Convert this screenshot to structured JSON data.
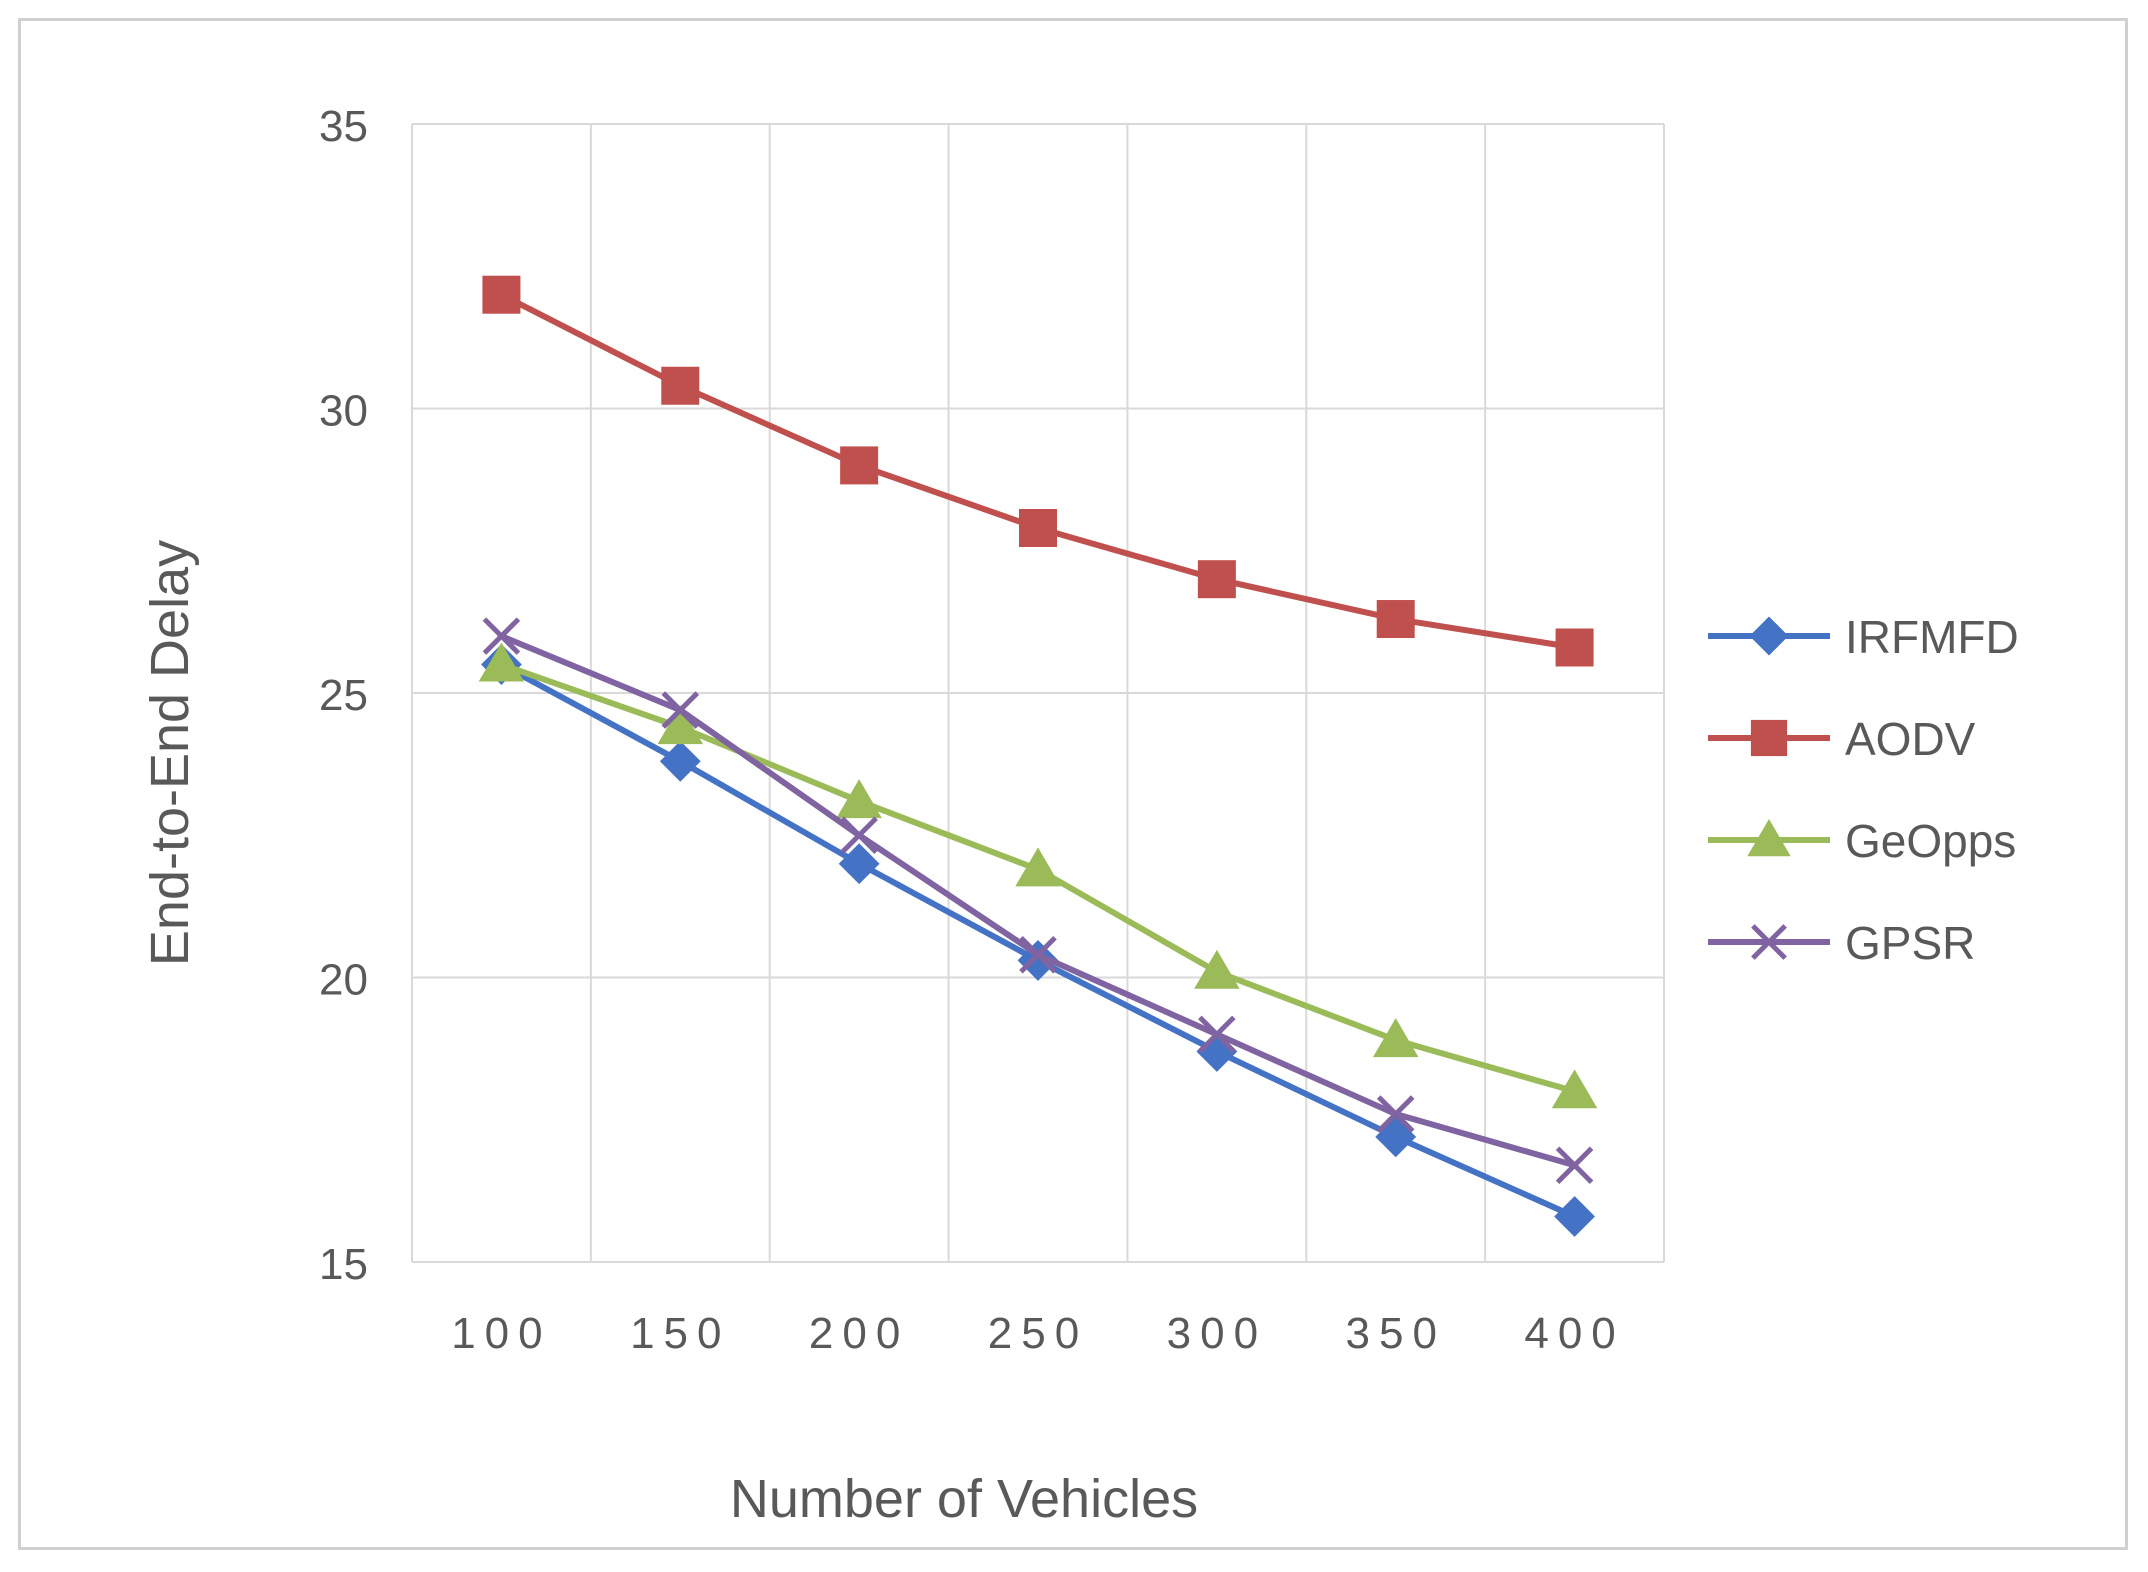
{
  "chart_data": {
    "type": "line",
    "title": "",
    "xlabel": "Number of Vehicles",
    "ylabel": "End-to-End Delay",
    "categories": [
      "100",
      "150",
      "200",
      "250",
      "300",
      "350",
      "400"
    ],
    "ylim": [
      15,
      35
    ],
    "yticks": [
      "15",
      "20",
      "25",
      "30",
      "35"
    ],
    "grid": true,
    "legend_position": "right",
    "series": [
      {
        "name": "IRFMFD",
        "color": "#4472C4",
        "marker": "diamond",
        "values": [
          25.5,
          23.8,
          22.0,
          20.3,
          18.7,
          17.2,
          15.8
        ]
      },
      {
        "name": "AODV",
        "color": "#C0504D",
        "marker": "square",
        "values": [
          32.0,
          30.4,
          29.0,
          27.9,
          27.0,
          26.3,
          25.8
        ]
      },
      {
        "name": "GeOpps",
        "color": "#9BBB59",
        "marker": "triangle",
        "values": [
          25.5,
          24.4,
          23.1,
          21.9,
          20.1,
          18.9,
          18.0
        ]
      },
      {
        "name": "GPSR",
        "color": "#8064A2",
        "marker": "x",
        "values": [
          26.0,
          24.7,
          22.5,
          20.4,
          19.0,
          17.6,
          16.7
        ]
      }
    ]
  }
}
